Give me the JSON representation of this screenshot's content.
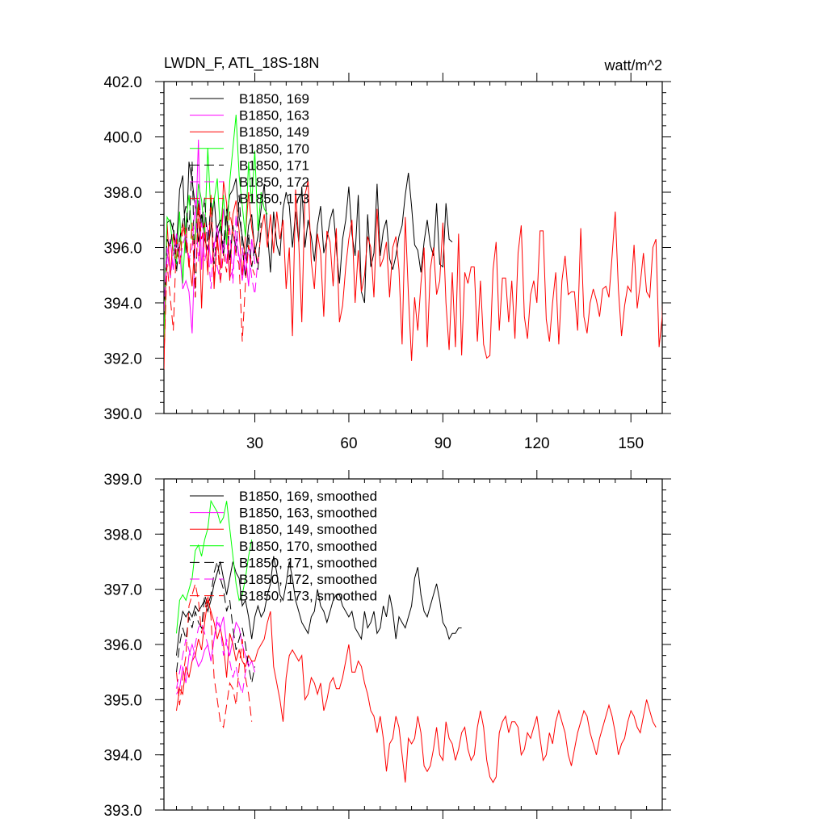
{
  "chart_data": [
    {
      "type": "line",
      "title": "LWDN_F, ATL_18S-18N",
      "units": "watt/m^2",
      "xlim": [
        1,
        160
      ],
      "ylim": [
        390,
        402
      ],
      "xticks": [
        30,
        60,
        90,
        120,
        150
      ],
      "yticks": [
        390,
        392,
        394,
        396,
        398,
        400,
        402
      ],
      "ytick_labels": [
        "390.0",
        "392.0",
        "394.0",
        "396.0",
        "398.0",
        "400.0",
        "402.0"
      ],
      "grid": false,
      "legend_position": "top-left",
      "series": [
        {
          "name": "B1850, 169",
          "color": "#000000",
          "dash": "solid",
          "x_start": 1,
          "values": [
            392.8,
            396.9,
            397.0,
            396.6,
            396.0,
            398.1,
            398.6,
            395.8,
            399.1,
            398.4,
            397.5,
            396.2,
            397.2,
            396.3,
            395.9,
            396.7,
            397.8,
            396.3,
            396.8,
            395.7,
            397.1,
            397.9,
            398.1,
            398.5,
            397.1,
            396.4,
            395.6,
            396.8,
            397.2,
            395.8,
            396.4,
            397.4,
            398.3,
            396.6,
            395.1,
            397.3,
            396.1,
            395.7,
            397.4,
            398.0,
            397.5,
            396.0,
            397.3,
            396.2,
            398.2,
            396.0,
            397.0,
            396.4,
            395.5,
            396.8,
            397.5,
            395.8,
            396.3,
            397.0,
            397.4,
            396.0,
            394.7,
            396.3,
            397.0,
            398.2,
            396.5,
            395.7,
            397.9,
            394.4,
            394.0,
            397.2,
            395.3,
            395.8,
            398.3,
            395.7,
            396.6,
            397.0,
            395.6,
            395.2,
            395.7,
            396.4,
            396.8,
            397.9,
            398.7,
            397.5,
            396.1,
            395.9,
            395.1,
            396.2,
            397.0,
            396.1,
            395.7,
            397.6,
            395.4,
            395.3,
            397.6,
            396.3,
            396.2
          ]
        },
        {
          "name": "B1850, 163",
          "color": "#ff00ff",
          "dash": "solid",
          "x_start": 1,
          "values": [
            393.6,
            395.6,
            396.3,
            395.2,
            396.5,
            395.9,
            394.5,
            394.8,
            394.4,
            392.9,
            396.3,
            399.9,
            395.2,
            397.2,
            396.6,
            395.4,
            396.0,
            396.8,
            395.9,
            397.4,
            396.4,
            394.9,
            395.2,
            396.3,
            395.7,
            394.8,
            395.8,
            394.6,
            396.3,
            395.4
          ]
        },
        {
          "name": "B1850, 149",
          "color": "#ff0000",
          "dash": "solid",
          "x_start": 1,
          "values": [
            391.6,
            396.9,
            394.9,
            396.5,
            395.6,
            396.0,
            396.9,
            396.2,
            395.5,
            394.6,
            396.5,
            397.6,
            393.8,
            396.8,
            395.1,
            397.9,
            394.5,
            396.4,
            395.2,
            398.4,
            397.6,
            394.8,
            397.2,
            397.7,
            396.6,
            395.0,
            396.4,
            398.0,
            396.7,
            396.0,
            395.4,
            396.6,
            397.2,
            396.0,
            397.2,
            395.8,
            397.3,
            396.3,
            397.0,
            394.5,
            396.0,
            392.8,
            398.1,
            396.2,
            393.3,
            397.9,
            398.4,
            395.5,
            394.5,
            396.5,
            395.8,
            393.5,
            396.6,
            396.2,
            394.6,
            396.7,
            393.3,
            393.9,
            395.3,
            396.3,
            397.0,
            394.0,
            395.9,
            394.4,
            395.0,
            396.4,
            396.0,
            394.2,
            397.4,
            395.3,
            395.6,
            396.2,
            394.2,
            396.0,
            396.4,
            395.2,
            392.5,
            397.1,
            394.3,
            391.9,
            394.2,
            393.0,
            394.7,
            396.0,
            392.4,
            395.2,
            396.0,
            394.3,
            394.8,
            396.9,
            394.0,
            392.3,
            395.1,
            392.4,
            396.5,
            392.1,
            395.1,
            394.7,
            395.3,
            395.3,
            392.6,
            394.8,
            392.5,
            392.0,
            392.1,
            395.2,
            396.2,
            393.0,
            394.9,
            394.9,
            393.3,
            394.8,
            392.7,
            395.8,
            396.8,
            393.5,
            392.7,
            394.3,
            394.8,
            394.0,
            396.6,
            396.6,
            393.4,
            392.6,
            394.0,
            395.1,
            392.5,
            394.8,
            395.7,
            394.3,
            394.4,
            394.4,
            393.0,
            396.7,
            393.5,
            392.9,
            394.0,
            394.5,
            394.1,
            393.5,
            394.5,
            394.6,
            394.2,
            395.7,
            397.3,
            394.5,
            392.8,
            393.9,
            394.6,
            394.4,
            396.1,
            393.8,
            394.7,
            395.8,
            394.4,
            394.2,
            396.0,
            396.3,
            392.4,
            393.5,
            397.4,
            396.1,
            392.7,
            393.5
          ]
        },
        {
          "name": "B1850, 170",
          "color": "#00ff00",
          "dash": "solid",
          "x_start": 1,
          "values": [
            392.7,
            397.1,
            396.9,
            395.9,
            395.4,
            397.3,
            394.7,
            396.9,
            397.9,
            396.3,
            396.3,
            398.3,
            397.7,
            396.5,
            399.6,
            397.2,
            397.7,
            398.5,
            396.6,
            397.9,
            396.1,
            398.4,
            399.6,
            400.8,
            398.6,
            397.5,
            396.4,
            399.1,
            397.6,
            399.5,
            396.6,
            398.0,
            397.4,
            397.2
          ]
        },
        {
          "name": "B1850, 171",
          "color": "#000000",
          "dash": "dash",
          "x_start": 1,
          "values": [
            393.6,
            396.3,
            396.0,
            396.9,
            395.1,
            396.3,
            396.9,
            397.5,
            396.6,
            399.1,
            394.2,
            397.7,
            396.8,
            397.8,
            395.9,
            397.8,
            395.4,
            396.7,
            397.0,
            396.0,
            397.4,
            395.5,
            396.8,
            395.8,
            397.9,
            396.0,
            394.9,
            396.5,
            395.3,
            396.0,
            395.2,
            396.9
          ]
        },
        {
          "name": "B1850, 172",
          "color": "#ff00ff",
          "dash": "dash",
          "x_start": 1,
          "values": [
            393.7,
            396.0,
            394.9,
            395.8,
            396.2,
            395.4,
            396.1,
            396.5,
            395.6,
            396.0,
            397.7,
            395.5,
            396.9,
            395.5,
            396.1,
            394.5,
            396.2,
            395.3,
            394.8,
            396.3,
            395.4,
            396.7,
            394.7,
            397.2,
            395.2,
            396.0,
            395.1,
            396.0,
            394.9,
            394.3,
            395.6
          ]
        },
        {
          "name": "B1850, 173",
          "color": "#ff0000",
          "dash": "dash",
          "x_start": 1,
          "values": [
            392.0,
            395.4,
            394.2,
            393.0,
            396.3,
            395.4,
            396.6,
            396.8,
            395.2,
            396.9,
            394.2,
            397.6,
            396.3,
            396.9,
            395.0,
            397.8,
            394.8,
            396.3,
            394.7,
            395.8,
            395.1,
            397.3,
            396.6,
            395.7,
            395.4,
            392.6,
            394.7,
            396.1,
            395.3,
            395.0
          ]
        }
      ]
    },
    {
      "type": "line",
      "title": "",
      "xlim": [
        1,
        160
      ],
      "ylim": [
        393,
        399
      ],
      "xticks": [
        30,
        60,
        90,
        120,
        150
      ],
      "yticks": [
        393,
        394,
        395,
        396,
        397,
        398,
        399
      ],
      "ytick_labels": [
        "393.0",
        "394.0",
        "395.0",
        "396.0",
        "397.0",
        "398.0",
        "399.0"
      ],
      "grid": false,
      "legend_position": "top-left",
      "series": [
        {
          "name": "B1850, 169, smoothed",
          "color": "#000000",
          "dash": "solid",
          "x_start": 5,
          "values": [
            395.8,
            396.3,
            396.6,
            396.5,
            396.6,
            396.5,
            396.7,
            396.6,
            396.7,
            396.8,
            396.6,
            396.8,
            397.1,
            397.3,
            397.5,
            397.2,
            396.9,
            397.2,
            397.5,
            397.3,
            397.2,
            396.7,
            396.8,
            396.5,
            396.1,
            396.5,
            396.7,
            396.5,
            396.6,
            396.9,
            397.1,
            397.6,
            397.3,
            396.9,
            396.8,
            397.1,
            397.5,
            397.2,
            396.8,
            396.6,
            396.4,
            396.3,
            396.2,
            396.5,
            396.6,
            397.0,
            396.7,
            396.6,
            396.4,
            396.6,
            396.8,
            396.9,
            396.9,
            396.7,
            396.6,
            396.5,
            396.6,
            396.3,
            396.2,
            396.1,
            396.6,
            396.3,
            396.4,
            396.6,
            396.2,
            396.3,
            396.7,
            396.5,
            396.9,
            396.6,
            396.1,
            396.5,
            396.4,
            396.3,
            396.5,
            396.7,
            397.2,
            397.4,
            396.9,
            396.6,
            396.5,
            396.7,
            396.9,
            397.1,
            396.8,
            396.4,
            396.3,
            396.1,
            396.2,
            396.2,
            396.3,
            396.3
          ]
        },
        {
          "name": "B1850, 163, smoothed",
          "color": "#ff00ff",
          "dash": "solid",
          "x_start": 5,
          "values": [
            395.1,
            395.2,
            395.6,
            395.3,
            395.8,
            396.0,
            395.8,
            395.6,
            395.7,
            395.9,
            396.0,
            395.7,
            396.1,
            396.4,
            396.3,
            396.5,
            396.0,
            395.8,
            396.1,
            396.4,
            396.3,
            396.0,
            395.8,
            395.6,
            395.7,
            395.5
          ]
        },
        {
          "name": "B1850, 149, smoothed",
          "color": "#ff0000",
          "dash": "solid",
          "x_start": 5,
          "values": [
            394.8,
            395.2,
            395.1,
            395.6,
            395.4,
            395.7,
            395.8,
            396.1,
            395.9,
            396.4,
            396.8,
            396.6,
            396.4,
            396.1,
            396.3,
            396.0,
            395.4,
            396.2,
            396.0,
            395.7,
            395.9,
            395.7,
            395.6,
            395.8,
            395.7,
            395.7,
            395.9,
            396.0,
            396.1,
            396.4,
            396.6,
            395.6,
            395.3,
            395.0,
            394.6,
            395.4,
            395.8,
            395.9,
            395.8,
            395.7,
            395.8,
            395.0,
            395.1,
            395.4,
            395.3,
            395.1,
            395.3,
            394.8,
            395.0,
            395.3,
            395.4,
            395.2,
            395.2,
            395.4,
            395.7,
            396.0,
            395.5,
            395.5,
            395.7,
            395.6,
            395.3,
            395.1,
            394.8,
            394.7,
            394.4,
            394.7,
            394.3,
            393.7,
            394.2,
            394.3,
            394.7,
            394.5,
            394.0,
            393.5,
            394.3,
            394.2,
            394.3,
            394.7,
            394.4,
            393.8,
            393.7,
            393.8,
            394.1,
            394.5,
            394.0,
            393.9,
            394.6,
            394.3,
            394.2,
            393.9,
            394.1,
            394.4,
            394.5,
            394.1,
            393.9,
            394.0,
            394.5,
            394.8,
            394.5,
            393.9,
            393.6,
            393.5,
            393.6,
            394.4,
            394.6,
            394.7,
            394.4,
            394.6,
            394.6,
            394.5,
            394.0,
            394.1,
            394.4,
            394.3,
            394.5,
            394.7,
            394.3,
            393.9,
            394.0,
            394.4,
            394.2,
            394.6,
            394.8,
            394.6,
            394.4,
            394.0,
            393.8,
            394.1,
            394.4,
            394.6,
            394.8,
            394.7,
            394.4,
            394.2,
            394.0,
            394.3,
            394.5,
            394.7,
            394.9,
            394.7,
            394.4,
            394.0,
            394.2,
            394.3,
            394.6,
            394.8,
            394.7,
            394.5,
            394.4,
            394.7,
            395.0,
            394.8,
            394.6,
            394.5
          ]
        },
        {
          "name": "B1850, 170, smoothed",
          "color": "#00ff00",
          "dash": "solid",
          "x_start": 5,
          "values": [
            396.2,
            396.8,
            396.9,
            396.8,
            397.0,
            397.2,
            397.7,
            397.8,
            397.6,
            397.9,
            398.1,
            398.6,
            398.5,
            398.4,
            398.2,
            398.3,
            398.6,
            398.1,
            397.6,
            397.1,
            396.8,
            396.9,
            397.2,
            397.6,
            397.9
          ]
        },
        {
          "name": "B1850, 171, smoothed",
          "color": "#000000",
          "dash": "dash",
          "x_start": 5,
          "values": [
            395.5,
            396.0,
            396.3,
            396.1,
            396.5,
            396.3,
            396.6,
            396.4,
            396.3,
            396.9,
            396.7,
            396.9,
            397.3,
            397.5,
            397.2,
            397.0,
            396.6,
            396.8,
            396.3,
            395.9,
            396.1,
            396.3,
            396.0,
            395.6,
            395.3,
            395.6
          ]
        },
        {
          "name": "B1850, 172, smoothed",
          "color": "#ff00ff",
          "dash": "dash",
          "x_start": 5,
          "values": [
            395.2,
            395.5,
            395.8,
            396.1,
            395.9,
            395.7,
            396.0,
            396.3,
            396.4,
            396.2,
            396.0,
            395.7,
            396.1,
            396.5,
            396.3,
            395.8,
            396.1,
            395.7,
            395.4,
            395.6,
            395.3,
            395.1,
            395.5,
            395.7
          ]
        },
        {
          "name": "B1850, 173, smoothed",
          "color": "#ff0000",
          "dash": "dash",
          "x_start": 5,
          "values": [
            395.5,
            394.9,
            395.4,
            395.8,
            396.7,
            396.9,
            397.1,
            396.8,
            396.2,
            396.6,
            396.9,
            396.5,
            395.4,
            395.0,
            394.6,
            394.5,
            394.9,
            395.3,
            395.2,
            394.9,
            395.6,
            396.1,
            395.4,
            395.1,
            394.6
          ]
        }
      ]
    }
  ]
}
